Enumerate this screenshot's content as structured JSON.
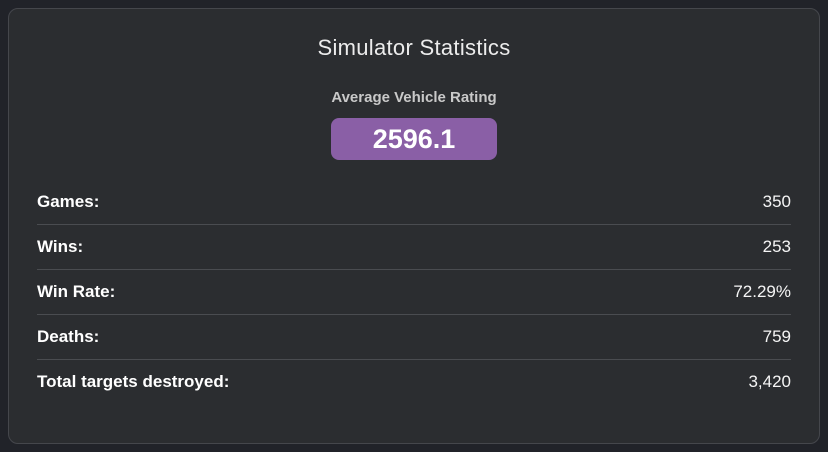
{
  "card": {
    "title": "Simulator Statistics",
    "rating": {
      "label": "Average Vehicle Rating",
      "value": "2596.1"
    },
    "rows": [
      {
        "label": "Games:",
        "value": "350"
      },
      {
        "label": "Wins:",
        "value": "253"
      },
      {
        "label": "Win Rate:",
        "value": "72.29%"
      },
      {
        "label": "Deaths:",
        "value": "759"
      },
      {
        "label": "Total targets destroyed:",
        "value": "3,420"
      }
    ]
  },
  "colors": {
    "accent": "#8a5fa6",
    "card_background": "#2b2d30",
    "page_background": "#212329"
  }
}
